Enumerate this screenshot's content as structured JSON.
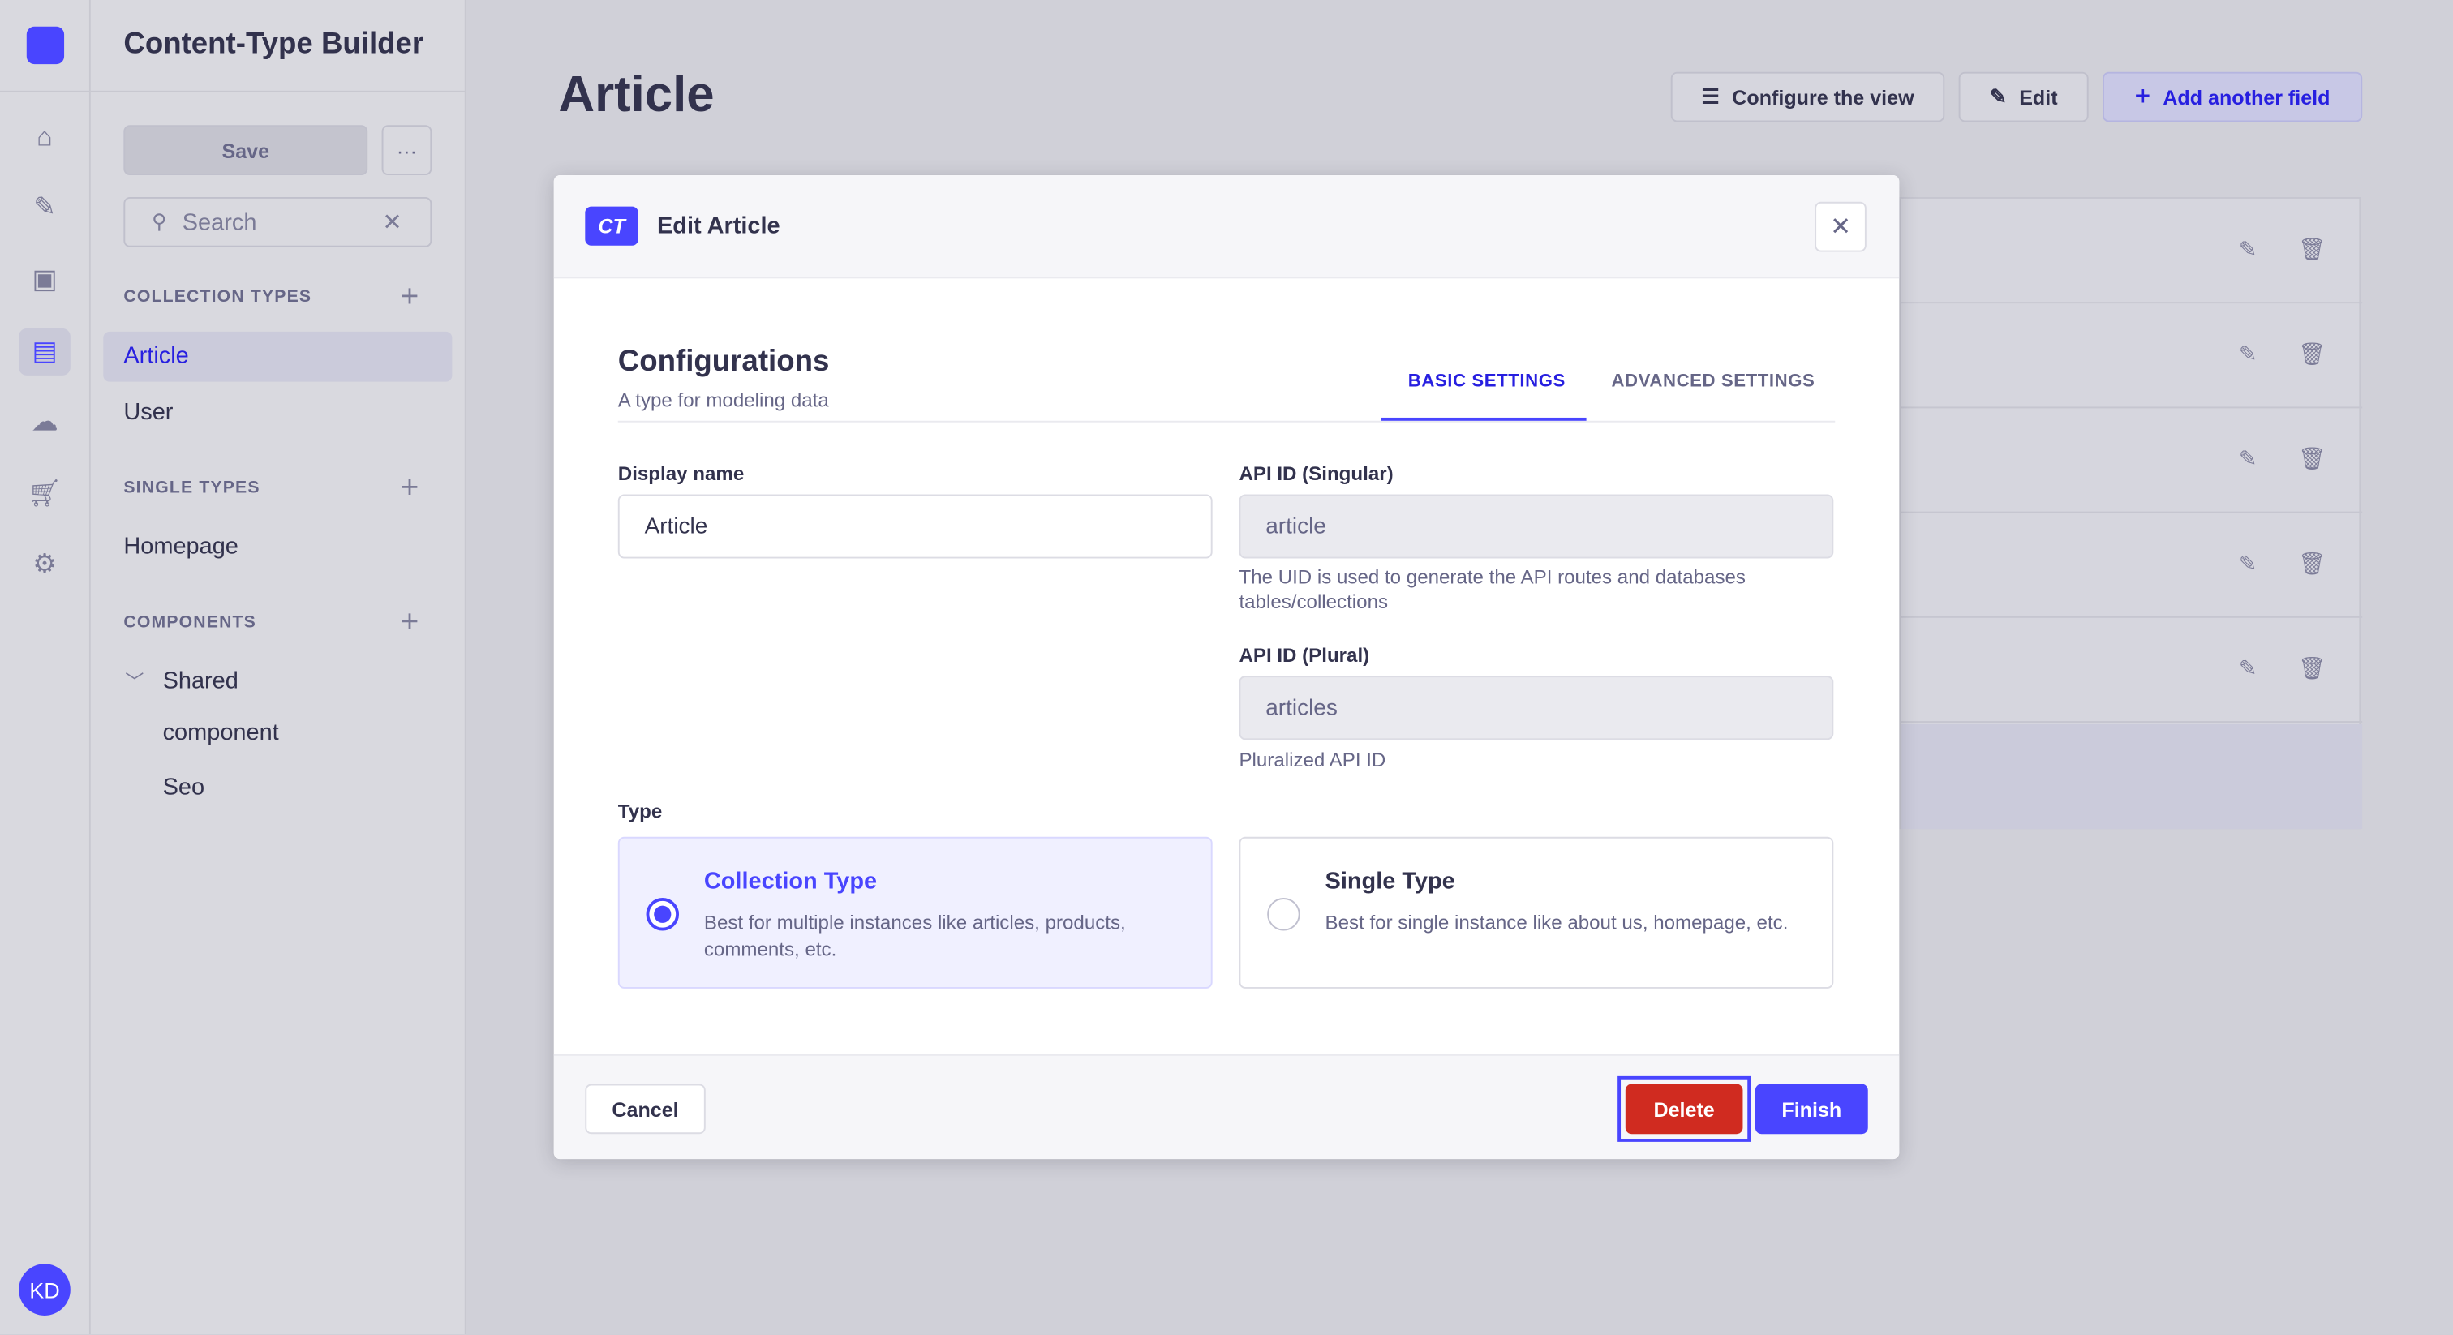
{
  "colors": {
    "primary": "#4945ff",
    "danger": "#d02b20",
    "text": "#32324d",
    "muted": "#666687"
  },
  "rail": {
    "icons": [
      "home-icon",
      "feather-icon",
      "media-library-icon",
      "content-type-builder-icon",
      "cloud-icon",
      "cart-icon",
      "gear-icon"
    ],
    "avatar": "KD"
  },
  "sidebar": {
    "title": "Content-Type Builder",
    "save_label": "Save",
    "more_label": "···",
    "search_placeholder": "Search",
    "sections": [
      {
        "title": "COLLECTION TYPES",
        "items": [
          "Article",
          "User"
        ]
      },
      {
        "title": "SINGLE TYPES",
        "items": [
          "Homepage"
        ]
      },
      {
        "title": "COMPONENTS",
        "group": "Shared",
        "items": [
          "component",
          "Seo"
        ]
      }
    ]
  },
  "main": {
    "title": "Article",
    "configure_label": "Configure the view",
    "edit_label": "Edit",
    "add_field_label": "Add another field"
  },
  "modal": {
    "badge": "CT",
    "title": "Edit Article",
    "heading": "Configurations",
    "subheading": "A type for modeling data",
    "tabs": [
      {
        "label": "BASIC SETTINGS",
        "active": true
      },
      {
        "label": "ADVANCED SETTINGS",
        "active": false
      }
    ],
    "display_name": {
      "label": "Display name",
      "value": "Article"
    },
    "api_singular": {
      "label": "API ID (Singular)",
      "value": "article",
      "hint": "The UID is used to generate the API routes and databases tables/collections"
    },
    "api_plural": {
      "label": "API ID (Plural)",
      "value": "articles",
      "hint": "Pluralized API ID"
    },
    "type_label": "Type",
    "types": [
      {
        "title": "Collection Type",
        "desc": "Best for multiple instances like articles, products, comments, etc.",
        "selected": true
      },
      {
        "title": "Single Type",
        "desc": "Best for single instance like about us, homepage, etc.",
        "selected": false
      }
    ],
    "cancel_label": "Cancel",
    "delete_label": "Delete",
    "finish_label": "Finish"
  }
}
